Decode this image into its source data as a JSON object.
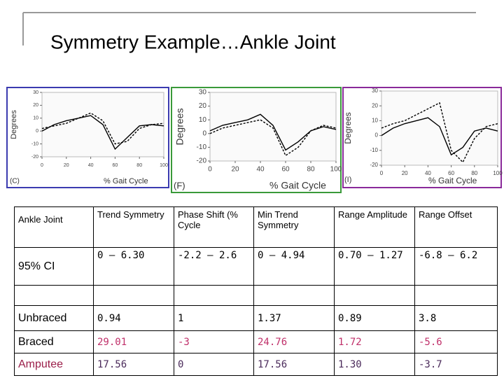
{
  "title": "Symmetry Example…Ankle Joint",
  "chart_data": [
    {
      "type": "line",
      "panel_label": "(C)",
      "xlabel": "% Gait Cycle",
      "ylabel": "Degrees",
      "x": [
        0,
        10,
        20,
        30,
        40,
        50,
        60,
        70,
        80,
        90,
        100
      ],
      "series": [
        {
          "color": "#000000",
          "dash": false,
          "values": [
            0,
            5,
            8,
            10,
            12,
            5,
            -14,
            -5,
            4,
            5,
            4
          ]
        },
        {
          "color": "#000000",
          "dash": true,
          "values": [
            2,
            4,
            6,
            10,
            14,
            8,
            -10,
            -8,
            2,
            5,
            6
          ]
        }
      ],
      "xlim": [
        0,
        100
      ],
      "ylim": [
        -20,
        30
      ],
      "xticks": [
        0,
        20,
        40,
        60,
        80,
        100
      ],
      "yticks": [
        -20,
        -10,
        0,
        10,
        20,
        30
      ]
    },
    {
      "type": "line",
      "panel_label": "(F)",
      "xlabel": "% Gait Cycle",
      "ylabel": "Degrees",
      "x": [
        0,
        10,
        20,
        30,
        40,
        50,
        60,
        70,
        80,
        90,
        100
      ],
      "series": [
        {
          "color": "#000000",
          "dash": false,
          "values": [
            2,
            6,
            8,
            10,
            14,
            6,
            -12,
            -6,
            2,
            5,
            3
          ]
        },
        {
          "color": "#000000",
          "dash": true,
          "values": [
            0,
            4,
            6,
            8,
            10,
            4,
            -16,
            -10,
            2,
            6,
            4
          ]
        }
      ],
      "xlim": [
        0,
        100
      ],
      "ylim": [
        -20,
        30
      ],
      "xticks": [
        0,
        20,
        40,
        60,
        80,
        100
      ],
      "yticks": [
        -20,
        -10,
        0,
        10,
        20,
        30
      ]
    },
    {
      "type": "line",
      "panel_label": "(I)",
      "xlabel": "% Gait Cycle",
      "ylabel": "Degrees",
      "x": [
        0,
        10,
        20,
        30,
        40,
        50,
        60,
        70,
        80,
        90,
        100
      ],
      "series": [
        {
          "color": "#000000",
          "dash": false,
          "values": [
            0,
            5,
            8,
            10,
            12,
            6,
            -13,
            -8,
            3,
            5,
            3
          ]
        },
        {
          "color": "#000000",
          "dash": true,
          "values": [
            5,
            8,
            10,
            14,
            18,
            22,
            -10,
            -18,
            -2,
            6,
            8
          ]
        }
      ],
      "xlim": [
        0,
        100
      ],
      "ylim": [
        -20,
        30
      ],
      "xticks": [
        0,
        20,
        40,
        60,
        80,
        100
      ],
      "yticks": [
        -20,
        -10,
        0,
        10,
        20,
        30
      ]
    }
  ],
  "table": {
    "header": [
      "Ankle Joint",
      "Trend Symmetry",
      "Phase Shift (% Cycle",
      "Min Trend Symmetry",
      "Range Amplitude",
      "Range Offset"
    ],
    "rows": [
      [
        "95% CI",
        "0 – 6.30",
        "-2.2 – 2.6",
        "0 – 4.94",
        "0.70 – 1.27",
        "-6.8 – 6.2"
      ],
      [
        "Unbraced",
        "0.94",
        "1",
        "1.37",
        "0.89",
        "3.8"
      ],
      [
        "Braced",
        "29.01",
        "-3",
        "24.76",
        "1.72",
        "-5.6"
      ],
      [
        "Amputee",
        "17.56",
        "0",
        "17.56",
        "1.30",
        "-3.7"
      ]
    ]
  }
}
